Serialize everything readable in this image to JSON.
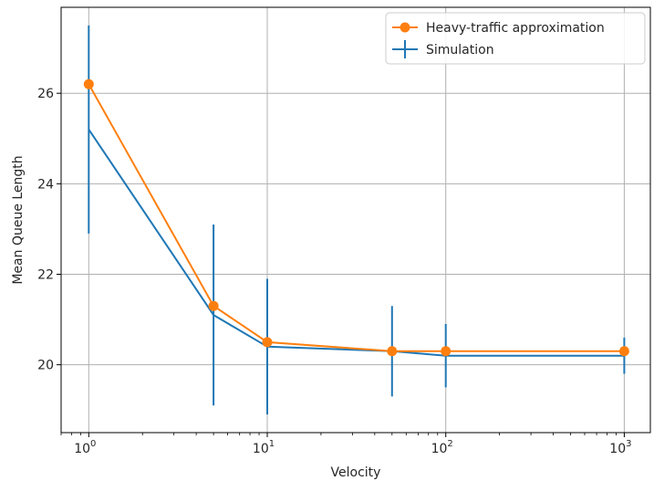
{
  "chart_data": {
    "type": "line",
    "xscale": "log",
    "xlabel": "Velocity",
    "ylabel": "Mean Queue Length",
    "xlim": [
      0.7,
      1400
    ],
    "ylim": [
      18.5,
      27.9
    ],
    "x_ticks": [
      1,
      10,
      100,
      1000
    ],
    "x_tick_labels": [
      {
        "base": "10",
        "exp": "0"
      },
      {
        "base": "10",
        "exp": "1"
      },
      {
        "base": "10",
        "exp": "2"
      },
      {
        "base": "10",
        "exp": "3"
      }
    ],
    "y_ticks": [
      20,
      22,
      24,
      26
    ],
    "y_tick_labels": [
      "20",
      "22",
      "24",
      "26"
    ],
    "grid": true,
    "legend_position": "top-right",
    "series": [
      {
        "name": "Heavy-traffic approximation",
        "color": "#ff7f0e",
        "marker": "circle",
        "x": [
          1,
          5,
          10,
          50,
          100,
          1000
        ],
        "y": [
          26.2,
          21.3,
          20.5,
          20.3,
          20.3,
          20.3
        ]
      },
      {
        "name": "Simulation",
        "color": "#1f77b4",
        "marker": "errorbar",
        "x": [
          1,
          5,
          10,
          50,
          100,
          1000
        ],
        "y": [
          25.2,
          21.1,
          20.4,
          20.3,
          20.2,
          20.2
        ],
        "y_low": [
          22.9,
          19.1,
          18.9,
          19.3,
          19.5,
          19.8
        ],
        "y_high": [
          27.5,
          23.1,
          21.9,
          21.3,
          20.9,
          20.6
        ]
      }
    ]
  }
}
